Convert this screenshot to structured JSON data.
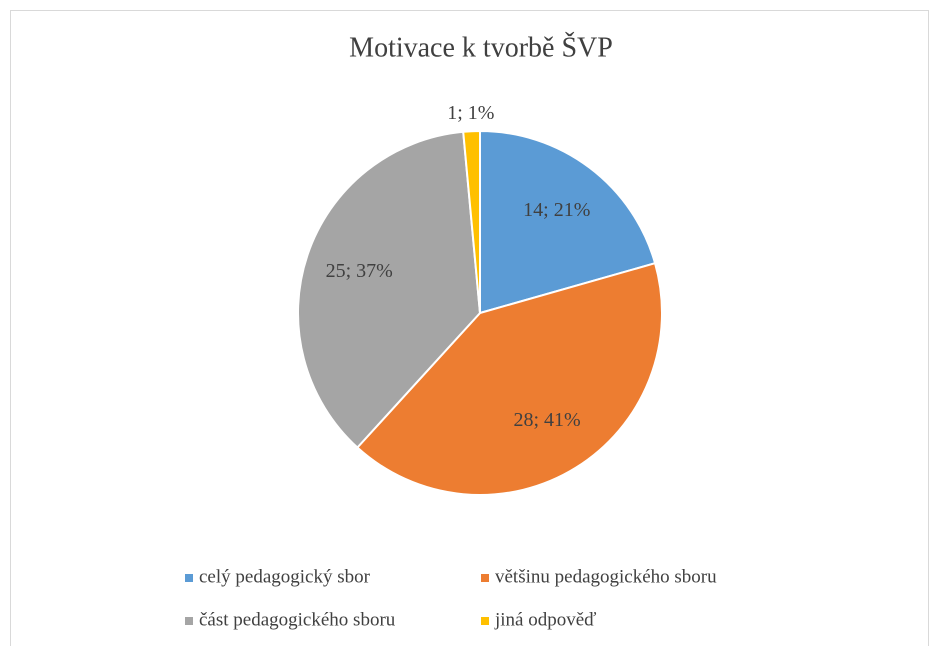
{
  "chart_data": {
    "type": "pie",
    "title": "Motivace k tvorbě ŠVP",
    "categories": [
      "celý pedagogický sbor",
      "většinu pedagogického sboru",
      "část pedagogického sboru",
      "jiná odpověď"
    ],
    "values": [
      14,
      28,
      25,
      1
    ],
    "value_labels": [
      "14; 21%",
      "28; 41%",
      "25; 37%",
      "1; 1%"
    ],
    "colors": [
      "#5b9bd5",
      "#ed7d31",
      "#a5a5a5",
      "#ffc000"
    ],
    "legend": "bottom"
  }
}
